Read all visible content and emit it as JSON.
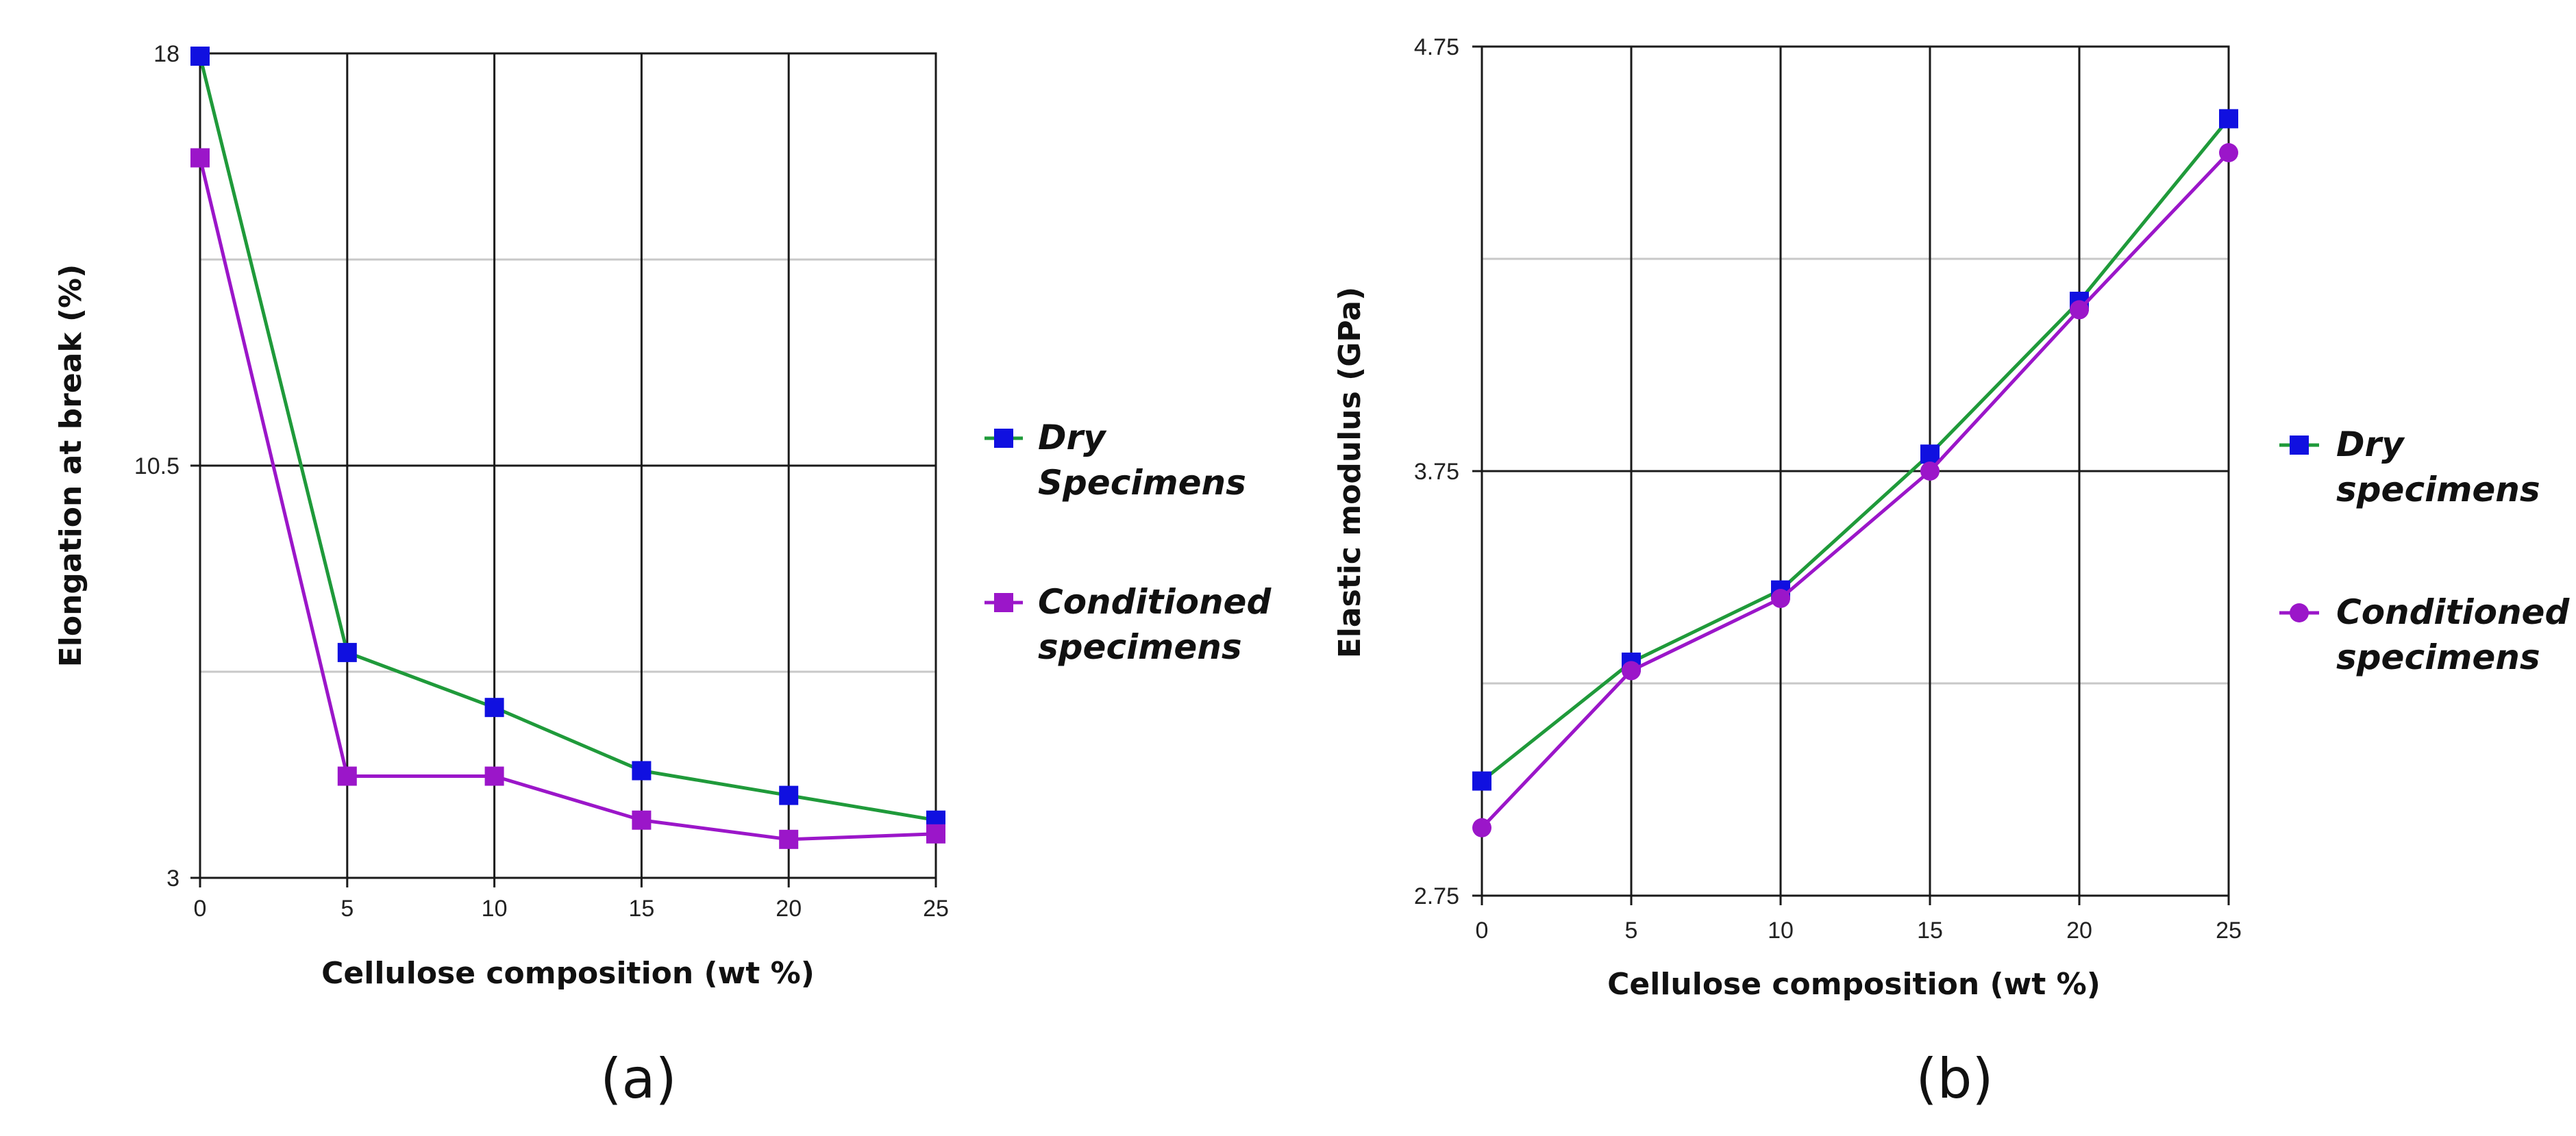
{
  "chart_data": [
    {
      "id": "a",
      "type": "line",
      "panel_label": "(a)",
      "xlabel": "Cellulose composition (wt %)",
      "ylabel": "Elongation at break (%)",
      "x": [
        0,
        5,
        10,
        15,
        20,
        25
      ],
      "xlim": [
        0,
        25
      ],
      "ylim": [
        3,
        18
      ],
      "x_ticks": [
        "0",
        "5",
        "10",
        "15",
        "20",
        "25"
      ],
      "y_ticks": [
        {
          "value": 18,
          "label": "18"
        },
        {
          "value": 10.5,
          "label": "10.5"
        },
        {
          "value": 3,
          "label": "3"
        }
      ],
      "minor_grid_y": [
        6.75,
        14.25
      ],
      "legend_placement": "right",
      "series": [
        {
          "name_lines": [
            "Dry",
            "Specimens"
          ],
          "values": [
            17.95,
            7.1,
            6.1,
            4.95,
            4.5,
            4.05
          ],
          "line_color": "#1f9a3a",
          "marker_color": "#1010e0",
          "marker": "square"
        },
        {
          "name_lines": [
            "Conditioned",
            "specimens"
          ],
          "values": [
            16.1,
            4.85,
            4.85,
            4.05,
            3.7,
            3.8
          ],
          "line_color": "#9b16c9",
          "marker_color": "#9b16c9",
          "marker": "square"
        }
      ]
    },
    {
      "id": "b",
      "type": "line",
      "panel_label": "(b)",
      "xlabel": "Cellulose composition (wt %)",
      "ylabel": "Elastic modulus (GPa)",
      "x": [
        0,
        5,
        10,
        15,
        20,
        25
      ],
      "xlim": [
        0,
        25
      ],
      "ylim": [
        2.75,
        4.75
      ],
      "x_ticks": [
        "0",
        "5",
        "10",
        "15",
        "20",
        "25"
      ],
      "y_ticks": [
        {
          "value": 4.75,
          "label": "4.75"
        },
        {
          "value": 3.75,
          "label": "3.75"
        },
        {
          "value": 2.75,
          "label": "2.75"
        }
      ],
      "minor_grid_y": [
        3.25,
        4.25
      ],
      "legend_placement": "right",
      "series": [
        {
          "name_lines": [
            "Dry",
            "specimens"
          ],
          "values": [
            3.02,
            3.3,
            3.47,
            3.79,
            4.15,
            4.58
          ],
          "line_color": "#1f9a3a",
          "marker_color": "#1010e0",
          "marker": "square"
        },
        {
          "name_lines": [
            "Conditioned",
            "specimens"
          ],
          "values": [
            2.91,
            3.28,
            3.45,
            3.75,
            4.13,
            4.5
          ],
          "line_color": "#9b16c9",
          "marker_color": "#9b16c9",
          "marker": "circle"
        }
      ]
    }
  ]
}
